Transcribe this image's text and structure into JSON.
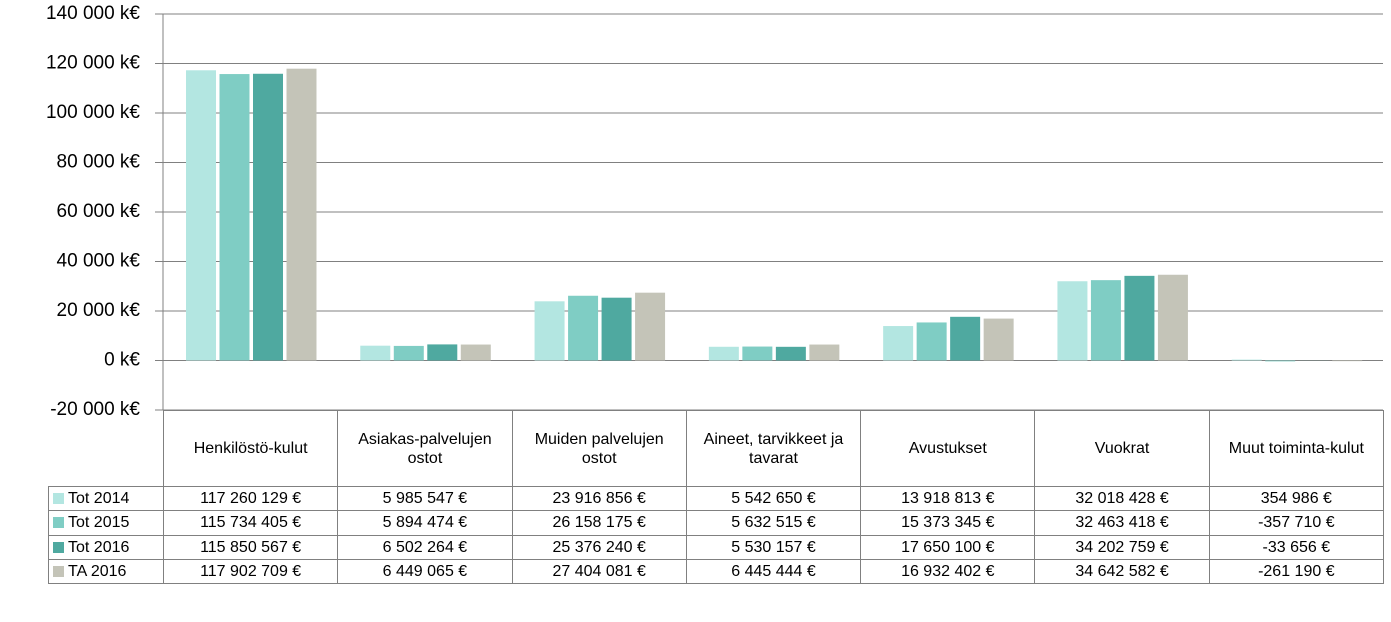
{
  "chart_data": {
    "type": "bar",
    "categories": [
      "Henkilöstö-kulut",
      "Asiakas-palvelujen ostot",
      "Muiden palvelujen ostot",
      "Aineet, tarvikkeet ja tavarat",
      "Avustukset",
      "Vuokrat",
      "Muut toiminta-kulut"
    ],
    "series": [
      {
        "name": "Tot 2014",
        "color": "#b3e6e1",
        "values": [
          117260.129,
          5985.547,
          23916.856,
          5542.65,
          13918.813,
          32018.428,
          354.986
        ],
        "value_labels": [
          "117 260 129 €",
          "5 985 547 €",
          "23 916 856 €",
          "5 542 650 €",
          "13 918 813 €",
          "32 018 428 €",
          "354 986 €"
        ]
      },
      {
        "name": "Tot 2015",
        "color": "#7fcdc4",
        "values": [
          115734.405,
          5894.474,
          26158.175,
          5632.515,
          15373.345,
          32463.418,
          -357.71
        ],
        "value_labels": [
          "115 734 405 €",
          "5 894 474 €",
          "26 158 175 €",
          "5 632 515 €",
          "15 373 345 €",
          "32 463 418 €",
          "-357 710 €"
        ]
      },
      {
        "name": "Tot 2016",
        "color": "#4fa9a0",
        "values": [
          115850.567,
          6502.264,
          25376.24,
          5530.157,
          17650.1,
          34202.759,
          -33.656
        ],
        "value_labels": [
          "115 850 567 €",
          "6 502 264 €",
          "25 376 240 €",
          "5 530 157 €",
          "17 650 100 €",
          "34 202 759 €",
          "-33 656 €"
        ]
      },
      {
        "name": "TA 2016",
        "color": "#c4c4b8",
        "values": [
          117902.709,
          6449.065,
          27404.081,
          6445.444,
          16932.402,
          34642.582,
          -261.19
        ],
        "value_labels": [
          "117 902 709 €",
          "6 449 065 €",
          "27 404 081 €",
          "6 445 444 €",
          "16 932 402 €",
          "34 642 582 €",
          "-261 190 €"
        ]
      }
    ],
    "ylim": [
      -20000,
      140000
    ],
    "yticks": [
      {
        "value": -20000,
        "label": "-20 000 k€"
      },
      {
        "value": 0,
        "label": "0 k€"
      },
      {
        "value": 20000,
        "label": "20 000 k€"
      },
      {
        "value": 40000,
        "label": "40 000 k€"
      },
      {
        "value": 60000,
        "label": "60 000 k€"
      },
      {
        "value": 80000,
        "label": "80 000 k€"
      },
      {
        "value": 100000,
        "label": "100 000 k€"
      },
      {
        "value": 120000,
        "label": "120 000 k€"
      },
      {
        "value": 140000,
        "label": "140 000 k€"
      }
    ],
    "grid": true
  }
}
